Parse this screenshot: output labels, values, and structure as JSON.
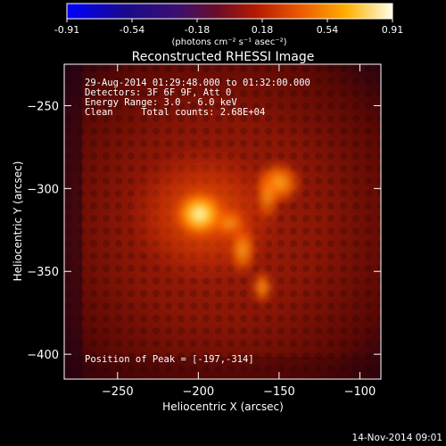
{
  "colorbar": {
    "ticks": [
      "-0.91",
      "-0.54",
      "-0.18",
      "0.18",
      "0.54",
      "0.91"
    ],
    "units": "(photons cm⁻² s⁻¹ asec⁻²)"
  },
  "title": "Reconstructed RHESSI Image",
  "annotations": {
    "line1": "29-Aug-2014 01:29:48.000 to 01:32:00.000",
    "line2": "Detectors: 3F 6F 9F, Att 0",
    "line3": "Energy Range: 3.0 - 6.0 keV",
    "line4": "Clean     Total counts: 2.68E+04",
    "peak": "Position of Peak = [-197,-314]"
  },
  "axes": {
    "xlabel": "Heliocentric X (arcsec)",
    "ylabel": "Heliocentric Y (arcsec)",
    "xticks": [
      -250,
      -200,
      -150,
      -100
    ],
    "yticks": [
      -250,
      -300,
      -350,
      -400
    ],
    "xrange": [
      -283,
      -87
    ],
    "yrange": [
      -415,
      -225
    ]
  },
  "footer": {
    "timestamp": "14-Nov-2014 09:01"
  },
  "colors": {
    "background": "#000000",
    "foreground": "#ffffff"
  }
}
